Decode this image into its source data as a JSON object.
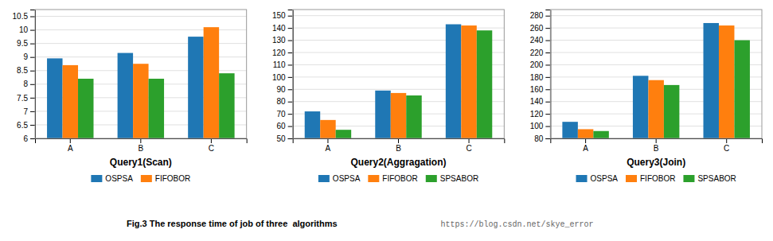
{
  "chart_data": [
    {
      "type": "bar",
      "title": "Query1(Scan)",
      "categories": [
        "A",
        "B",
        "C"
      ],
      "series": [
        {
          "name": "OSPSA",
          "values": [
            8.95,
            9.15,
            9.75
          ]
        },
        {
          "name": "FIFOBOR",
          "values": [
            8.7,
            8.75,
            10.1
          ]
        },
        {
          "values": [
            8.2,
            8.2,
            8.4
          ]
        }
      ],
      "ylim": [
        6,
        10.75
      ],
      "yticks": [
        6,
        6.5,
        7,
        7.5,
        8,
        8.5,
        9,
        9.5,
        10,
        10.5
      ],
      "grid": true
    },
    {
      "type": "bar",
      "title": "Query2(Aggragation)",
      "categories": [
        "A",
        "B",
        "C"
      ],
      "series": [
        {
          "name": "OSPSA",
          "values": [
            72,
            89,
            143
          ]
        },
        {
          "name": "FIFOBOR",
          "values": [
            65,
            87,
            142
          ]
        },
        {
          "name": "SPSABOR",
          "values": [
            57,
            85,
            138
          ]
        }
      ],
      "ylim": [
        50,
        155
      ],
      "yticks": [
        50,
        60,
        70,
        80,
        90,
        100,
        110,
        120,
        130,
        140,
        150
      ],
      "grid": true
    },
    {
      "type": "bar",
      "title": "Query3(Join)",
      "categories": [
        "A",
        "B",
        "C"
      ],
      "series": [
        {
          "name": "OSPSA",
          "values": [
            107,
            182,
            268
          ]
        },
        {
          "name": "FIFOBOR",
          "values": [
            95,
            175,
            264
          ]
        },
        {
          "name": "SPSABOR",
          "values": [
            92,
            167,
            240
          ]
        }
      ],
      "ylim": [
        80,
        290
      ],
      "yticks": [
        80,
        100,
        120,
        140,
        160,
        180,
        200,
        220,
        240,
        260,
        280
      ],
      "grid": true
    }
  ],
  "caption": "Fig.3 The response time of job of three  algorithms",
  "caption_url": "https://blog.csdn.net/skye_error"
}
